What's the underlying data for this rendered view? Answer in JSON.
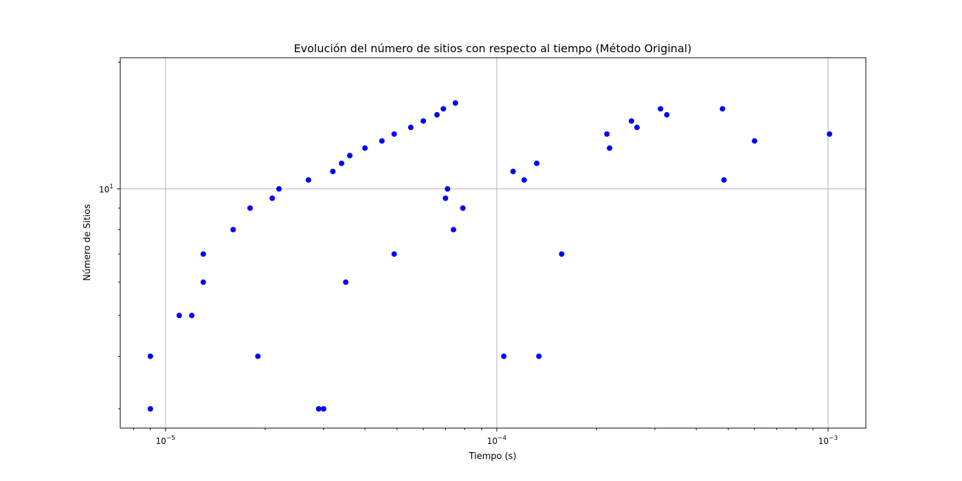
{
  "chart_data": {
    "type": "scatter",
    "title": "Evolución del número de sitios con respecto al tiempo (Método Original)",
    "xlabel": "Tiempo (s)",
    "ylabel": "Número de Sitios",
    "xscale": "log",
    "yscale": "log",
    "xlim": [
      7.3e-06,
      0.0013
    ],
    "ylim": [
      2.7,
      20.5
    ],
    "grid": true,
    "x_major_ticks": [
      {
        "value": 1e-05,
        "base": "10",
        "exp": "−5"
      },
      {
        "value": 0.0001,
        "base": "10",
        "exp": "−4"
      },
      {
        "value": 0.001,
        "base": "10",
        "exp": "−3"
      }
    ],
    "y_major_ticks": [
      {
        "value": 10,
        "base": "10",
        "exp": "1"
      }
    ],
    "marker_color": "#0000ff",
    "points": [
      [
        9e-06,
        3
      ],
      [
        9e-06,
        4
      ],
      [
        1.1e-05,
        5
      ],
      [
        1.2e-05,
        5
      ],
      [
        1.3e-05,
        6
      ],
      [
        1.3e-05,
        7
      ],
      [
        1.6e-05,
        8
      ],
      [
        1.8e-05,
        9
      ],
      [
        1.9e-05,
        4
      ],
      [
        2.1e-05,
        9.5
      ],
      [
        2.2e-05,
        10
      ],
      [
        2.7e-05,
        10.5
      ],
      [
        2.9e-05,
        3
      ],
      [
        3e-05,
        3
      ],
      [
        3.2e-05,
        11
      ],
      [
        3.4e-05,
        11.5
      ],
      [
        3.5e-05,
        6
      ],
      [
        3.6e-05,
        12
      ],
      [
        4e-05,
        12.5
      ],
      [
        4.5e-05,
        13
      ],
      [
        4.9e-05,
        7
      ],
      [
        4.9e-05,
        13.5
      ],
      [
        5.5e-05,
        14
      ],
      [
        6e-05,
        14.5
      ],
      [
        6.6e-05,
        15
      ],
      [
        6.9e-05,
        15.5
      ],
      [
        7e-05,
        9.5
      ],
      [
        7.1e-05,
        10
      ],
      [
        7.4e-05,
        8
      ],
      [
        7.5e-05,
        16
      ],
      [
        7.9e-05,
        9
      ],
      [
        0.000105,
        4
      ],
      [
        0.000112,
        11
      ],
      [
        0.000121,
        10.5
      ],
      [
        0.000132,
        11.5
      ],
      [
        0.000134,
        4
      ],
      [
        0.000157,
        7
      ],
      [
        0.000215,
        13.5
      ],
      [
        0.000219,
        12.5
      ],
      [
        0.000255,
        14.5
      ],
      [
        0.000265,
        14
      ],
      [
        0.000312,
        15.5
      ],
      [
        0.000326,
        15
      ],
      [
        0.00048,
        15.5
      ],
      [
        0.000485,
        10.5
      ],
      [
        0.0006,
        13
      ],
      [
        0.00101,
        13.5
      ]
    ]
  }
}
